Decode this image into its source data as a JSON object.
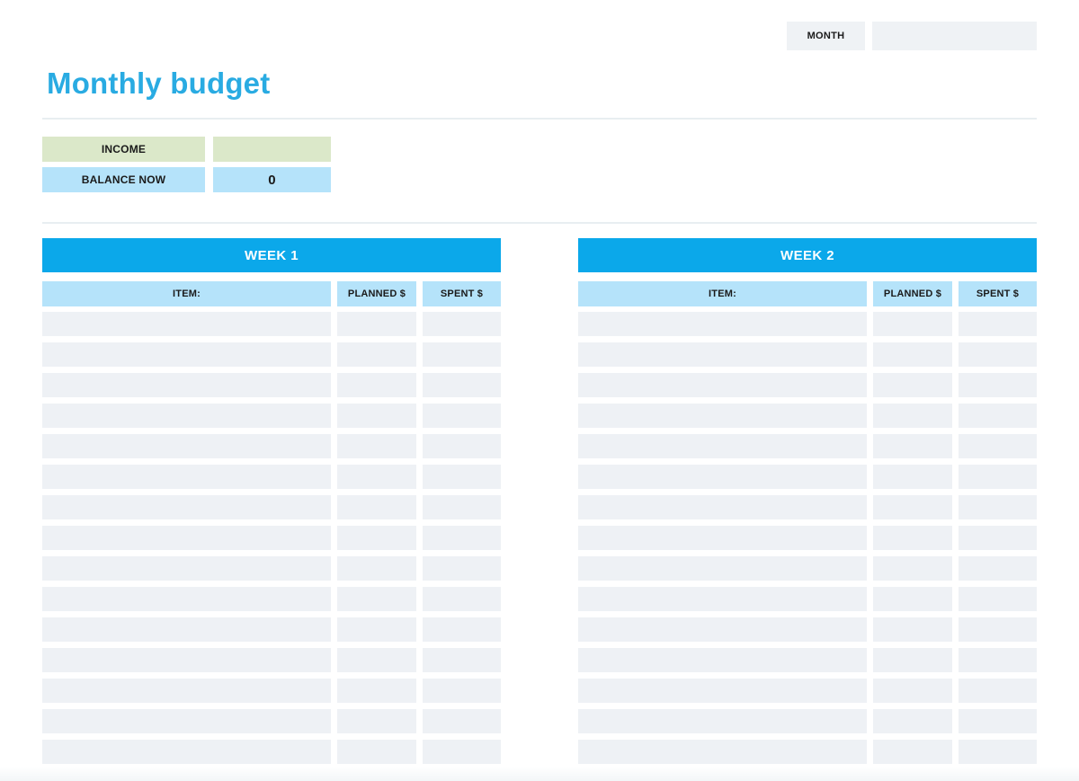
{
  "header": {
    "month_label": "MONTH",
    "month_value": ""
  },
  "title": "Monthly budget",
  "summary": {
    "income": {
      "label": "INCOME",
      "value": ""
    },
    "balance": {
      "label": "BALANCE NOW",
      "value": "0"
    }
  },
  "weeks": [
    {
      "title": "WEEK 1",
      "columns": [
        "ITEM:",
        "PLANNED $",
        "SPENT $"
      ],
      "row_count": 15
    },
    {
      "title": "WEEK 2",
      "columns": [
        "ITEM:",
        "PLANNED $",
        "SPENT $"
      ],
      "row_count": 15
    }
  ],
  "colors": {
    "accent_blue": "#0ba8ea",
    "title_blue": "#29abe2",
    "light_blue": "#b5e3fa",
    "light_green": "#dbe8c9",
    "row_gray": "#eef1f5",
    "box_gray": "#eff2f5"
  }
}
